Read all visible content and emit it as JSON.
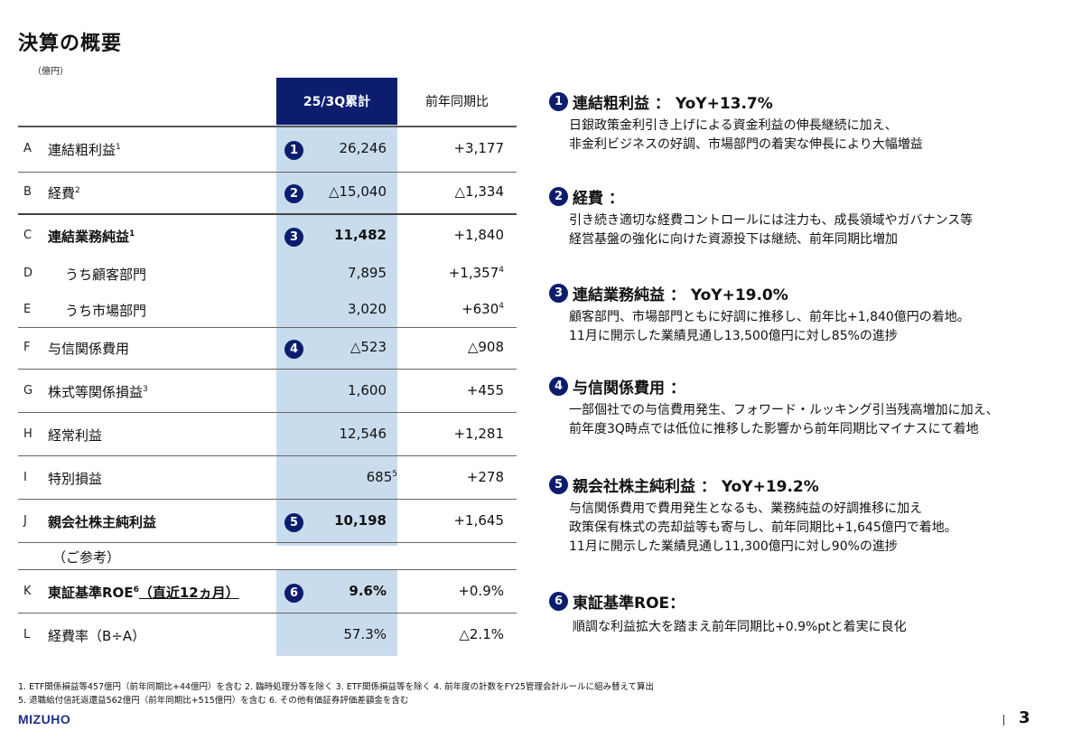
{
  "page": {
    "title": "決算の概要",
    "unit": "（億円）",
    "page_number": "3"
  },
  "table": {
    "header_current": "25/3Q累計",
    "header_prev": "前年同期比",
    "rows": [
      {
        "letter": "A",
        "label": "連結粗利益",
        "sup": "1",
        "badge": "1",
        "value": "26,246",
        "yoy": "+3,177"
      },
      {
        "letter": "B",
        "label": "経費",
        "sup": "2",
        "badge": "2",
        "value": "△15,040",
        "yoy": "△1,334"
      },
      {
        "letter": "C",
        "label": "連結業務純益",
        "sup": "1",
        "badge": "3",
        "value": "11,482",
        "yoy": "+1,840"
      },
      {
        "letter": "D",
        "label": "うち顧客部門",
        "value": "7,895",
        "yoy": "+1,357",
        "yoy_sup": "4"
      },
      {
        "letter": "E",
        "label": "うち市場部門",
        "value": "3,020",
        "yoy": "+630",
        "yoy_sup": "4"
      },
      {
        "letter": "F",
        "label": "与信関係費用",
        "badge": "4",
        "value": "△523",
        "yoy": "△908"
      },
      {
        "letter": "G",
        "label": "株式等関係損益",
        "sup": "3",
        "value": "1,600",
        "yoy": "+455"
      },
      {
        "letter": "H",
        "label": "経常利益",
        "value": "12,546",
        "yoy": "+1,281"
      },
      {
        "letter": "I",
        "label": "特別損益",
        "value": "685",
        "value_sup": "5",
        "yoy": "+278"
      },
      {
        "letter": "J",
        "label": "親会社株主純利益",
        "badge": "5",
        "value": "10,198",
        "yoy": "+1,645"
      },
      {
        "label": "（ご参考）"
      },
      {
        "letter": "K",
        "label": "東証基準ROE",
        "sup": "6",
        "label_suffix": "（直近12ヵ月）",
        "badge": "6",
        "value": "9.6%",
        "yoy": "+0.9%"
      },
      {
        "letter": "L",
        "label": "経費率（B÷A）",
        "value": "57.3%",
        "yoy": "△2.1%"
      }
    ]
  },
  "highlights": [
    {
      "badge": "1",
      "title": "連結粗利益 ： YoY+13.7%",
      "lines": [
        "日銀政策金利引き上げによる資金利益の伸長継続に加え、",
        "非金利ビジネスの好調、市場部門の着実な伸長により大幅増益"
      ]
    },
    {
      "badge": "2",
      "title": "経費 ：",
      "lines": [
        "引き続き適切な経費コントロールには注力も、成長領域やガバナンス等",
        "経営基盤の強化に向けた資源投下は継続、前年同期比増加"
      ]
    },
    {
      "badge": "3",
      "title": "連結業務純益 ： YoY+19.0%",
      "lines": [
        "顧客部門、市場部門ともに好調に推移し、前年比+1,840億円の着地。",
        "11月に開示した業績見通し13,500億円に対し85%の進捗"
      ]
    },
    {
      "badge": "4",
      "title": "与信関係費用 ：",
      "lines": [
        "一部個社での与信費用発生、フォワード・ルッキング引当残高増加に加え、",
        "前年度3Q時点では低位に推移した影響から前年同期比マイナスにて着地"
      ]
    },
    {
      "badge": "5",
      "title": "親会社株主純利益 ： YoY+19.2%",
      "lines": [
        "与信関係費用で費用発生となるも、業務純益の好調推移に加え",
        "政策保有株式の売却益等も寄与し、前年同期比+1,645億円で着地。",
        "11月に開示した業績見通し11,300億円に対し90%の進捗"
      ]
    },
    {
      "badge": "6",
      "title": "東証基準ROE：",
      "lines": [
        "順調な利益拡大を踏まえ前年同期比+0.9%ptと着実に良化"
      ]
    }
  ],
  "footnotes": [
    "1. ETF関係損益等457億円（前年同期比+44億円）を含む 2. 臨時処理分等を除く 3. ETF関係損益等を除く 4. 前年度の計数をFY25管理会計ルールに組み替えて算出",
    "5. 退職給付信託返還益562億円（前年同期比+515億円）を含む 6. その他有価証券評価差額金を含む"
  ],
  "logo": "MIZUHO",
  "colors": {
    "navy": "#0c1d6e",
    "highlight": "#c9dcee"
  }
}
